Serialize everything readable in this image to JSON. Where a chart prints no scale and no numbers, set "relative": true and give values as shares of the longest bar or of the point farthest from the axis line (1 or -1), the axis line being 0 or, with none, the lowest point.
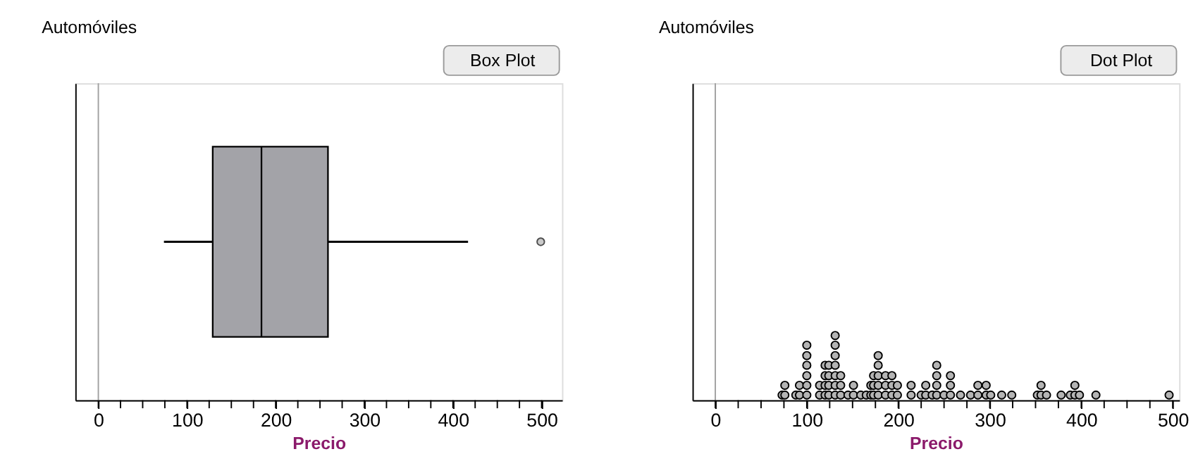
{
  "chart_data": [
    {
      "type": "box",
      "title": "Automóviles",
      "xlabel": "Precio",
      "annotations": [
        "Box Plot"
      ],
      "orientation": "horizontal",
      "categories": [
        null
      ],
      "tick_labels": "x",
      "color": "#a3a3a8",
      "boxes": [
        {
          "low": 74,
          "q1": 129,
          "median": 184,
          "q3": 259,
          "high": 417,
          "outliers": [
            499
          ]
        }
      ],
      "xlim": [
        -26,
        523
      ],
      "xticks": [
        0,
        {
          "value": 25,
          "label": null
        },
        {
          "value": 50,
          "label": null
        },
        {
          "value": 75,
          "label": null
        },
        100,
        {
          "value": 125,
          "label": null
        },
        {
          "value": 150,
          "label": null
        },
        {
          "value": 175,
          "label": null
        },
        200,
        {
          "value": 225,
          "label": null
        },
        {
          "value": 250,
          "label": null
        },
        {
          "value": 275,
          "label": null
        },
        300,
        {
          "value": 325,
          "label": null
        },
        {
          "value": 350,
          "label": null
        },
        {
          "value": 375,
          "label": null
        },
        400,
        {
          "value": 425,
          "label": null
        },
        {
          "value": 450,
          "label": null
        },
        {
          "value": 475,
          "label": null
        },
        500
      ],
      "ref_lines": [
        {
          "axis": "x",
          "value": 0,
          "color": "#a0a0a0"
        }
      ],
      "grid": false
    },
    {
      "type": "scatter",
      "title": "Automóviles",
      "xlabel": "Precio",
      "annotations": [
        "Dot Plot"
      ],
      "tick_labels": "x",
      "marker": "circle",
      "color": "#b4b4b4",
      "x": [
        73,
        76,
        76,
        88,
        92,
        92,
        100,
        100,
        100,
        100,
        100,
        100,
        114,
        114,
        120,
        120,
        120,
        120,
        124,
        124,
        124,
        124,
        131,
        131,
        131,
        131,
        131,
        131,
        131,
        137,
        137,
        137,
        145,
        151,
        151,
        159,
        165,
        170,
        170,
        173,
        173,
        173,
        178,
        178,
        178,
        178,
        178,
        186,
        186,
        186,
        193,
        193,
        193,
        199,
        199,
        214,
        214,
        225,
        230,
        230,
        237,
        242,
        242,
        242,
        242,
        250,
        257,
        257,
        257,
        268,
        279,
        287,
        287,
        296,
        296,
        301,
        313,
        324,
        352,
        356,
        356,
        362,
        378,
        388,
        393,
        393,
        398,
        416,
        496
      ],
      "relative": true,
      "values": [
        0.08,
        0.08,
        0.23,
        0.08,
        0.08,
        0.23,
        0.08,
        0.23,
        0.38,
        0.54,
        0.69,
        0.85,
        0.08,
        0.23,
        0.08,
        0.23,
        0.38,
        0.54,
        0.08,
        0.23,
        0.38,
        0.54,
        0.08,
        0.23,
        0.38,
        0.54,
        0.69,
        0.85,
        1,
        0.08,
        0.23,
        0.38,
        0.08,
        0.08,
        0.23,
        0.08,
        0.08,
        0.08,
        0.23,
        0.08,
        0.23,
        0.38,
        0.08,
        0.23,
        0.38,
        0.54,
        0.69,
        0.08,
        0.23,
        0.38,
        0.08,
        0.23,
        0.38,
        0.08,
        0.23,
        0.08,
        0.23,
        0.08,
        0.08,
        0.23,
        0.08,
        0.08,
        0.23,
        0.38,
        0.54,
        0.08,
        0.08,
        0.23,
        0.38,
        0.08,
        0.08,
        0.08,
        0.23,
        0.08,
        0.23,
        0.08,
        0.08,
        0.08,
        0.08,
        0.08,
        0.23,
        0.08,
        0.08,
        0.08,
        0.08,
        0.23,
        0.08,
        0.08,
        0.08
      ],
      "xlim": [
        -25,
        507
      ],
      "xticks": [
        0,
        {
          "value": 25,
          "label": null
        },
        {
          "value": 50,
          "label": null
        },
        {
          "value": 75,
          "label": null
        },
        100,
        {
          "value": 125,
          "label": null
        },
        {
          "value": 150,
          "label": null
        },
        {
          "value": 175,
          "label": null
        },
        200,
        {
          "value": 225,
          "label": null
        },
        {
          "value": 250,
          "label": null
        },
        {
          "value": 275,
          "label": null
        },
        300,
        {
          "value": 325,
          "label": null
        },
        {
          "value": 350,
          "label": null
        },
        {
          "value": 375,
          "label": null
        },
        400,
        {
          "value": 425,
          "label": null
        },
        {
          "value": 450,
          "label": null
        },
        {
          "value": 475,
          "label": null
        },
        500
      ],
      "ref_lines": [
        {
          "axis": "x",
          "value": 0,
          "color": "#a0a0a0"
        }
      ],
      "grid": false
    }
  ]
}
